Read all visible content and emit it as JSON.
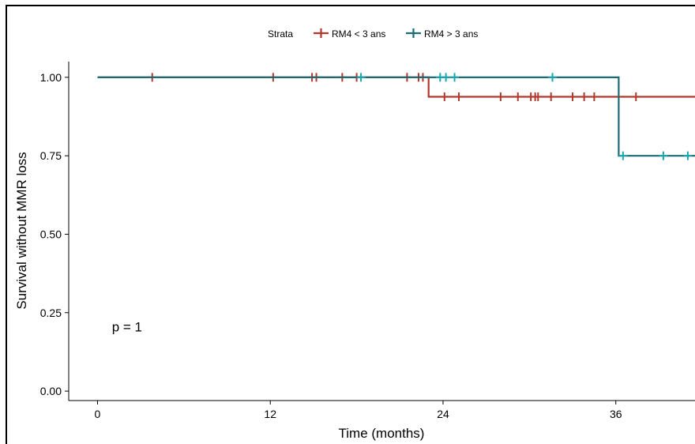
{
  "colors": {
    "series1": "#b2372c",
    "series2": "#1b6b73",
    "series2_censor": "#1aa6ad"
  },
  "chart_data": {
    "type": "line",
    "subtype": "kaplan-meier step",
    "title": "",
    "xlabel": "Time (months)",
    "ylabel": "Survival without MMR loss",
    "xlim": [
      -2,
      41.5
    ],
    "ylim": [
      -0.03,
      1.05
    ],
    "xticks": [
      0,
      12,
      24,
      36
    ],
    "xtick_labels": [
      "0",
      "12",
      "24",
      "36"
    ],
    "yticks": [
      0,
      0.25,
      0.5,
      0.75,
      1
    ],
    "ytick_labels": [
      "0.00",
      "0.25",
      "0.50",
      "0.75",
      "1.00"
    ],
    "grid": false,
    "legend": {
      "position": "top",
      "title": "Strata",
      "entries": [
        "RM4 < 3 ans",
        "RM4 > 3 ans"
      ]
    },
    "annotation": {
      "text": "p = 1",
      "x": 1,
      "y": 0.19
    },
    "series": [
      {
        "name": "RM4 < 3 ans",
        "steps": [
          [
            0,
            1.0
          ],
          [
            23,
            1.0
          ],
          [
            23,
            0.938
          ],
          [
            41.5,
            0.938
          ]
        ],
        "censor_x": [
          3.8,
          12.2,
          14.9,
          15.2,
          17,
          18,
          21.5,
          22.3,
          22.6,
          24.1,
          25.1,
          28,
          29.2,
          30.1,
          30.4,
          30.6,
          31.5,
          33,
          33.8,
          34.5,
          37.4
        ]
      },
      {
        "name": "RM4 > 3 ans",
        "steps": [
          [
            0,
            1.0
          ],
          [
            36.2,
            1.0
          ],
          [
            36.2,
            0.75
          ],
          [
            41.5,
            0.75
          ]
        ],
        "censor_x": [
          18.3,
          23.8,
          24.2,
          24.8,
          31.6,
          36.5,
          39.3,
          41
        ]
      }
    ]
  }
}
